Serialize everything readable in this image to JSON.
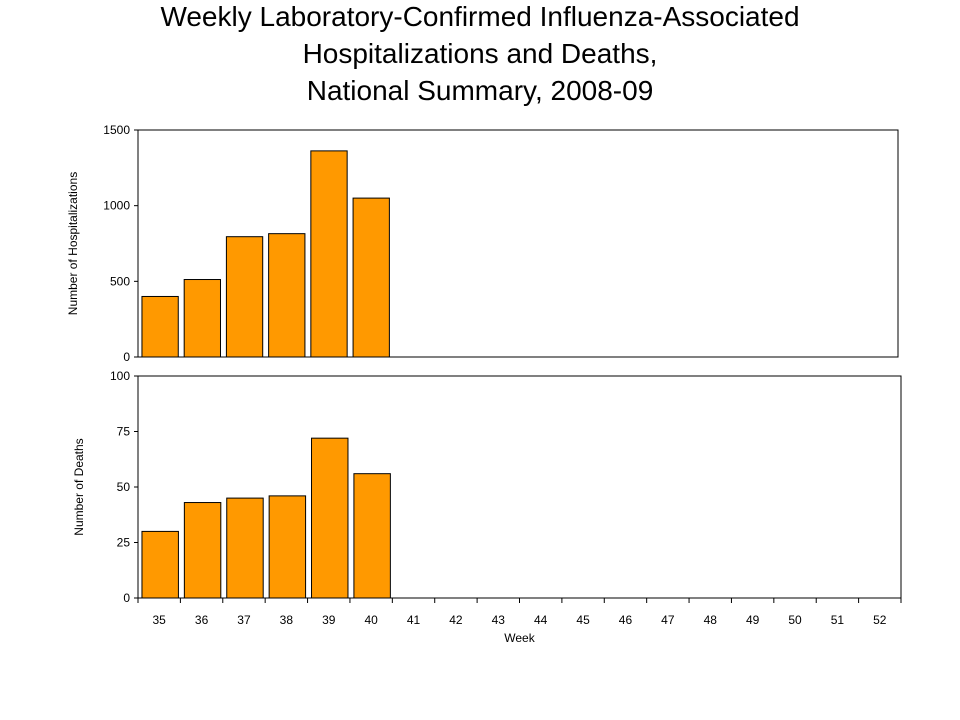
{
  "title_lines": [
    "Weekly Laboratory-Confirmed Influenza-Associated",
    "Hospitalizations and Deaths,",
    "National Summary, 2008-09"
  ],
  "colors": {
    "bar_fill": "#FF9900",
    "bar_stroke": "#000000",
    "frame": "#000000"
  },
  "chart_data": [
    {
      "type": "bar",
      "title": "",
      "xlabel": "",
      "ylabel": "Number of Hospitalizations",
      "categories": [
        "35",
        "36",
        "37",
        "38",
        "39",
        "40",
        "41",
        "42",
        "43",
        "44",
        "45",
        "46",
        "47",
        "48",
        "49",
        "50",
        "51",
        "52"
      ],
      "values": [
        400,
        512,
        795,
        815,
        1362,
        1050,
        null,
        null,
        null,
        null,
        null,
        null,
        null,
        null,
        null,
        null,
        null,
        null
      ],
      "ylim": [
        0,
        1500
      ],
      "yticks": [
        0,
        500,
        1000,
        1500
      ],
      "grid": false,
      "legend": "none"
    },
    {
      "type": "bar",
      "title": "",
      "xlabel": "Week",
      "ylabel": "Number of Deaths",
      "categories": [
        "35",
        "36",
        "37",
        "38",
        "39",
        "40",
        "41",
        "42",
        "43",
        "44",
        "45",
        "46",
        "47",
        "48",
        "49",
        "50",
        "51",
        "52"
      ],
      "values": [
        30,
        43,
        45,
        46,
        72,
        56,
        null,
        null,
        null,
        null,
        null,
        null,
        null,
        null,
        null,
        null,
        null,
        null
      ],
      "ylim": [
        0,
        100
      ],
      "yticks": [
        0,
        25,
        50,
        75,
        100
      ],
      "grid": false,
      "legend": "none"
    }
  ]
}
